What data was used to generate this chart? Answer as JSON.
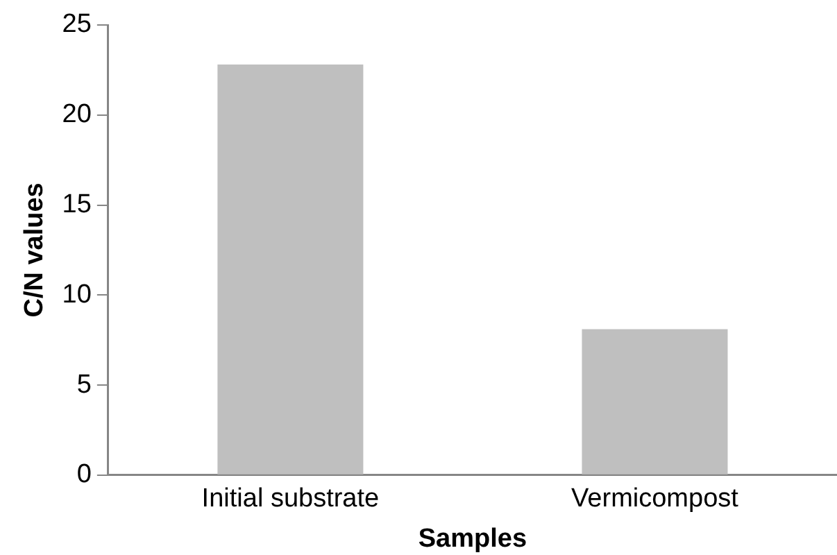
{
  "chart_data": {
    "type": "bar",
    "xlabel": "Samples",
    "ylabel": "C/N values",
    "categories": [
      "Initial substrate",
      "Vermicompost"
    ],
    "values": [
      22.8,
      8.1
    ],
    "color": "#bfbfbf",
    "ylim": [
      0,
      25
    ],
    "yticks": [
      0,
      5,
      10,
      15,
      20,
      25
    ],
    "grid": false,
    "legend": false
  }
}
